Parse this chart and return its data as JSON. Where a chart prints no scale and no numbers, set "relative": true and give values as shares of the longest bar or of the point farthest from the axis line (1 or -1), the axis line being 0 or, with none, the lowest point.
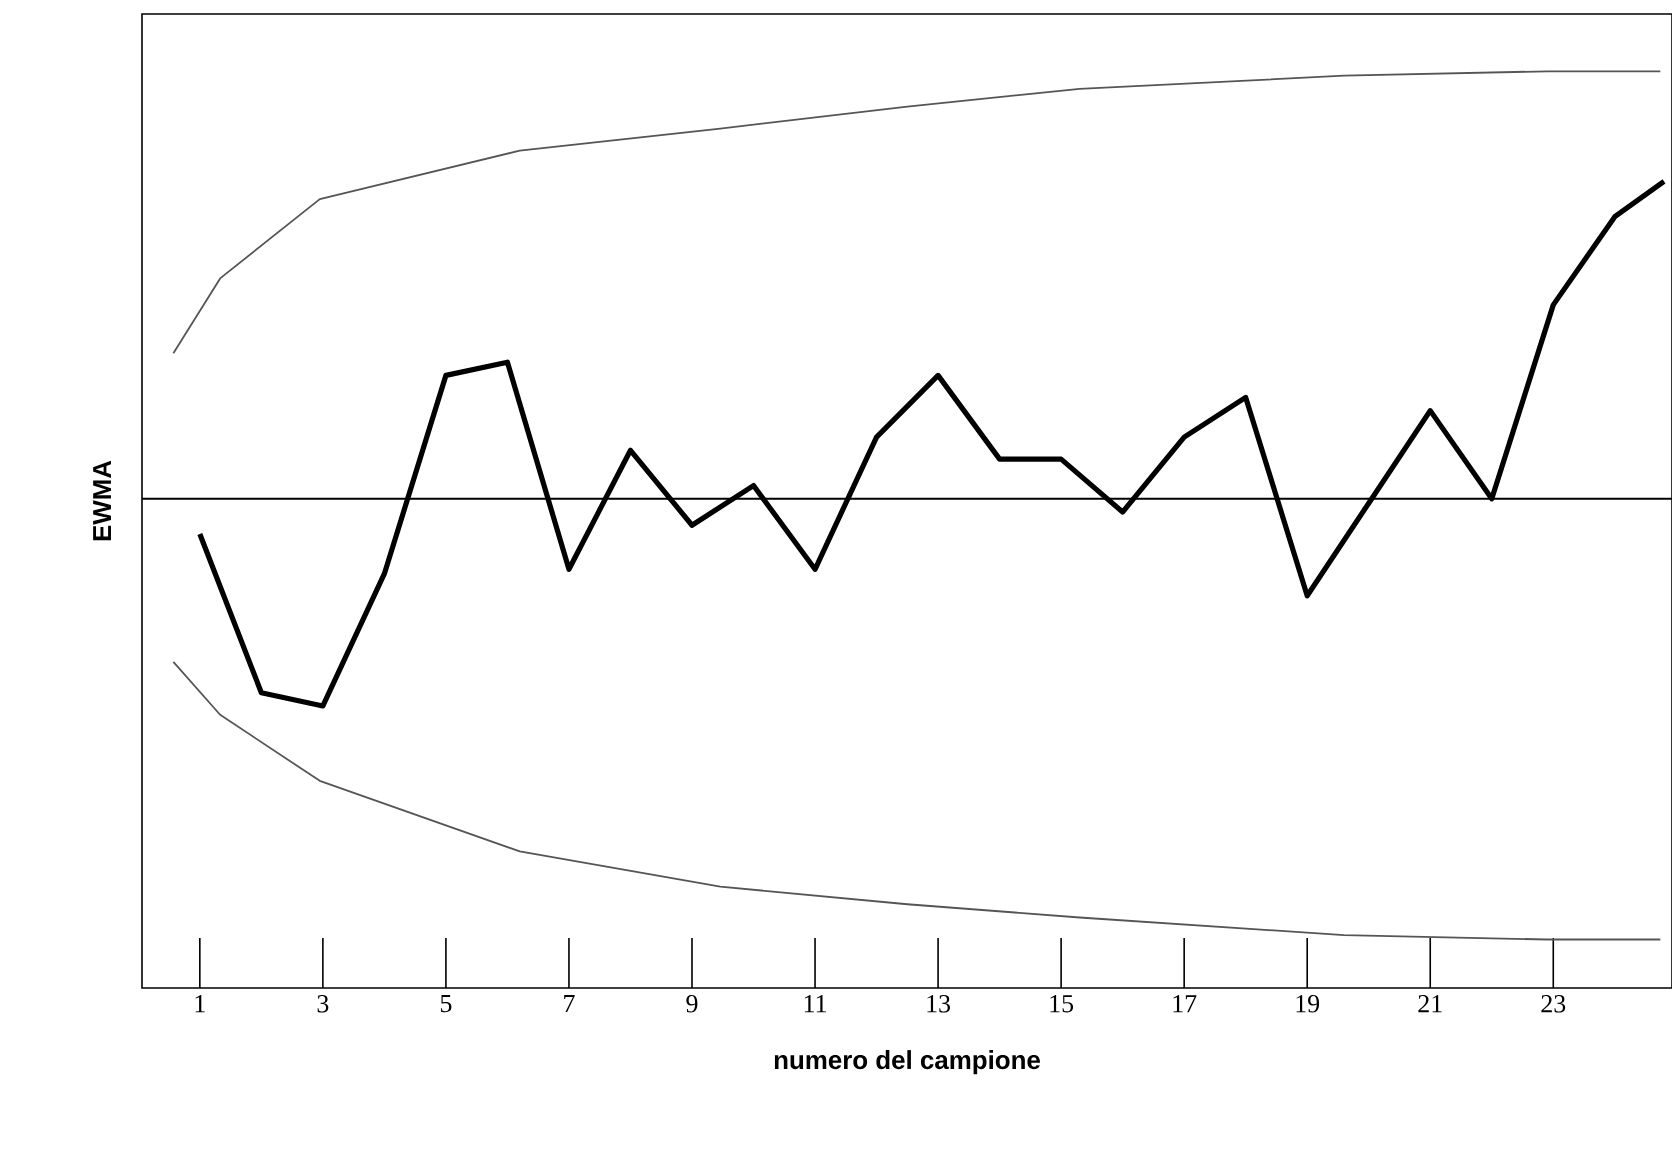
{
  "chart_data": {
    "type": "line",
    "xlabel": "numero del campione",
    "ylabel": "EWMA",
    "relative": true,
    "xlim": [
      0.06,
      24.93
    ],
    "xticks": [
      1,
      3,
      5,
      7,
      9,
      11,
      13,
      15,
      17,
      19,
      21,
      23
    ],
    "ref_lines": [
      {
        "axis": "y",
        "value": 0,
        "color": "#000000"
      }
    ],
    "series": [
      {
        "color": "#000000",
        "x": [
          1,
          2,
          3,
          4,
          5,
          6,
          7,
          8,
          9,
          10,
          11,
          12,
          13,
          14,
          15,
          16,
          17,
          18,
          19,
          20,
          21,
          22,
          23,
          24,
          24.8
        ],
        "values": [
          -0.08,
          -0.44,
          -0.47,
          -0.17,
          0.28,
          0.31,
          -0.16,
          0.11,
          -0.06,
          0.03,
          -0.16,
          0.14,
          0.28,
          0.09,
          0.09,
          -0.03,
          0.14,
          0.23,
          -0.22,
          -0.01,
          0.2,
          0,
          0.44,
          0.64,
          0.72
        ]
      },
      {
        "color": "#555555",
        "x": [
          0.57,
          1.33,
          2.95,
          6.2,
          9.46,
          12.5,
          15.3,
          19.6,
          22.9,
          24.74
        ],
        "values": [
          0.33,
          0.5,
          0.68,
          0.79,
          0.84,
          0.89,
          0.93,
          0.96,
          0.97,
          0.97
        ]
      },
      {
        "color": "#555555",
        "x": [
          0.57,
          1.33,
          2.95,
          6.2,
          9.46,
          12.5,
          15.3,
          19.6,
          22.9,
          24.74
        ],
        "values": [
          -0.37,
          -0.49,
          -0.64,
          -0.8,
          -0.88,
          -0.92,
          -0.95,
          -0.99,
          -1.0,
          -1.0
        ]
      }
    ]
  }
}
